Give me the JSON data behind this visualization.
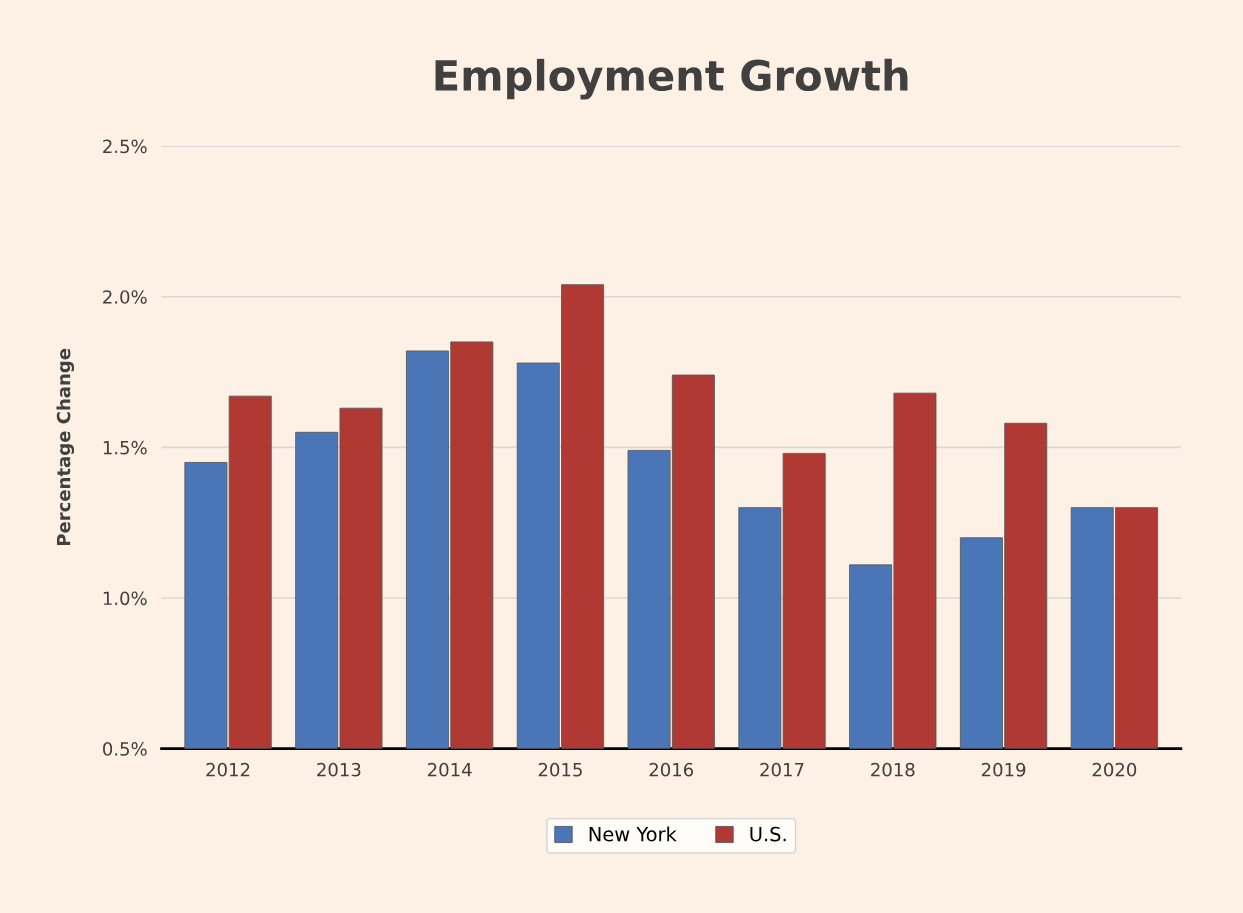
{
  "chart_data": {
    "type": "bar",
    "title": "Employment Growth",
    "ylabel": "Percentage Change",
    "categories": [
      "2012",
      "2013",
      "2014",
      "2015",
      "2016",
      "2017",
      "2018",
      "2019",
      "2020"
    ],
    "series": [
      {
        "name": "New York",
        "color": "#4a76b8",
        "values": [
          1.45,
          1.55,
          1.82,
          1.78,
          1.49,
          1.3,
          1.11,
          1.2,
          1.3
        ]
      },
      {
        "name": "U.S.",
        "color": "#b03a33",
        "values": [
          1.67,
          1.63,
          1.85,
          2.04,
          1.74,
          1.48,
          1.68,
          1.58,
          1.3
        ]
      }
    ],
    "ylim": [
      0.5,
      2.5
    ],
    "yticks": [
      {
        "value": 0.5,
        "label": "0.5%"
      },
      {
        "value": 1.0,
        "label": "1.0%"
      },
      {
        "value": 1.5,
        "label": "1.5%"
      },
      {
        "value": 2.0,
        "label": "2.0%"
      },
      {
        "value": 2.5,
        "label": "2.5%"
      }
    ],
    "grid": "y",
    "legend": "bottom"
  }
}
